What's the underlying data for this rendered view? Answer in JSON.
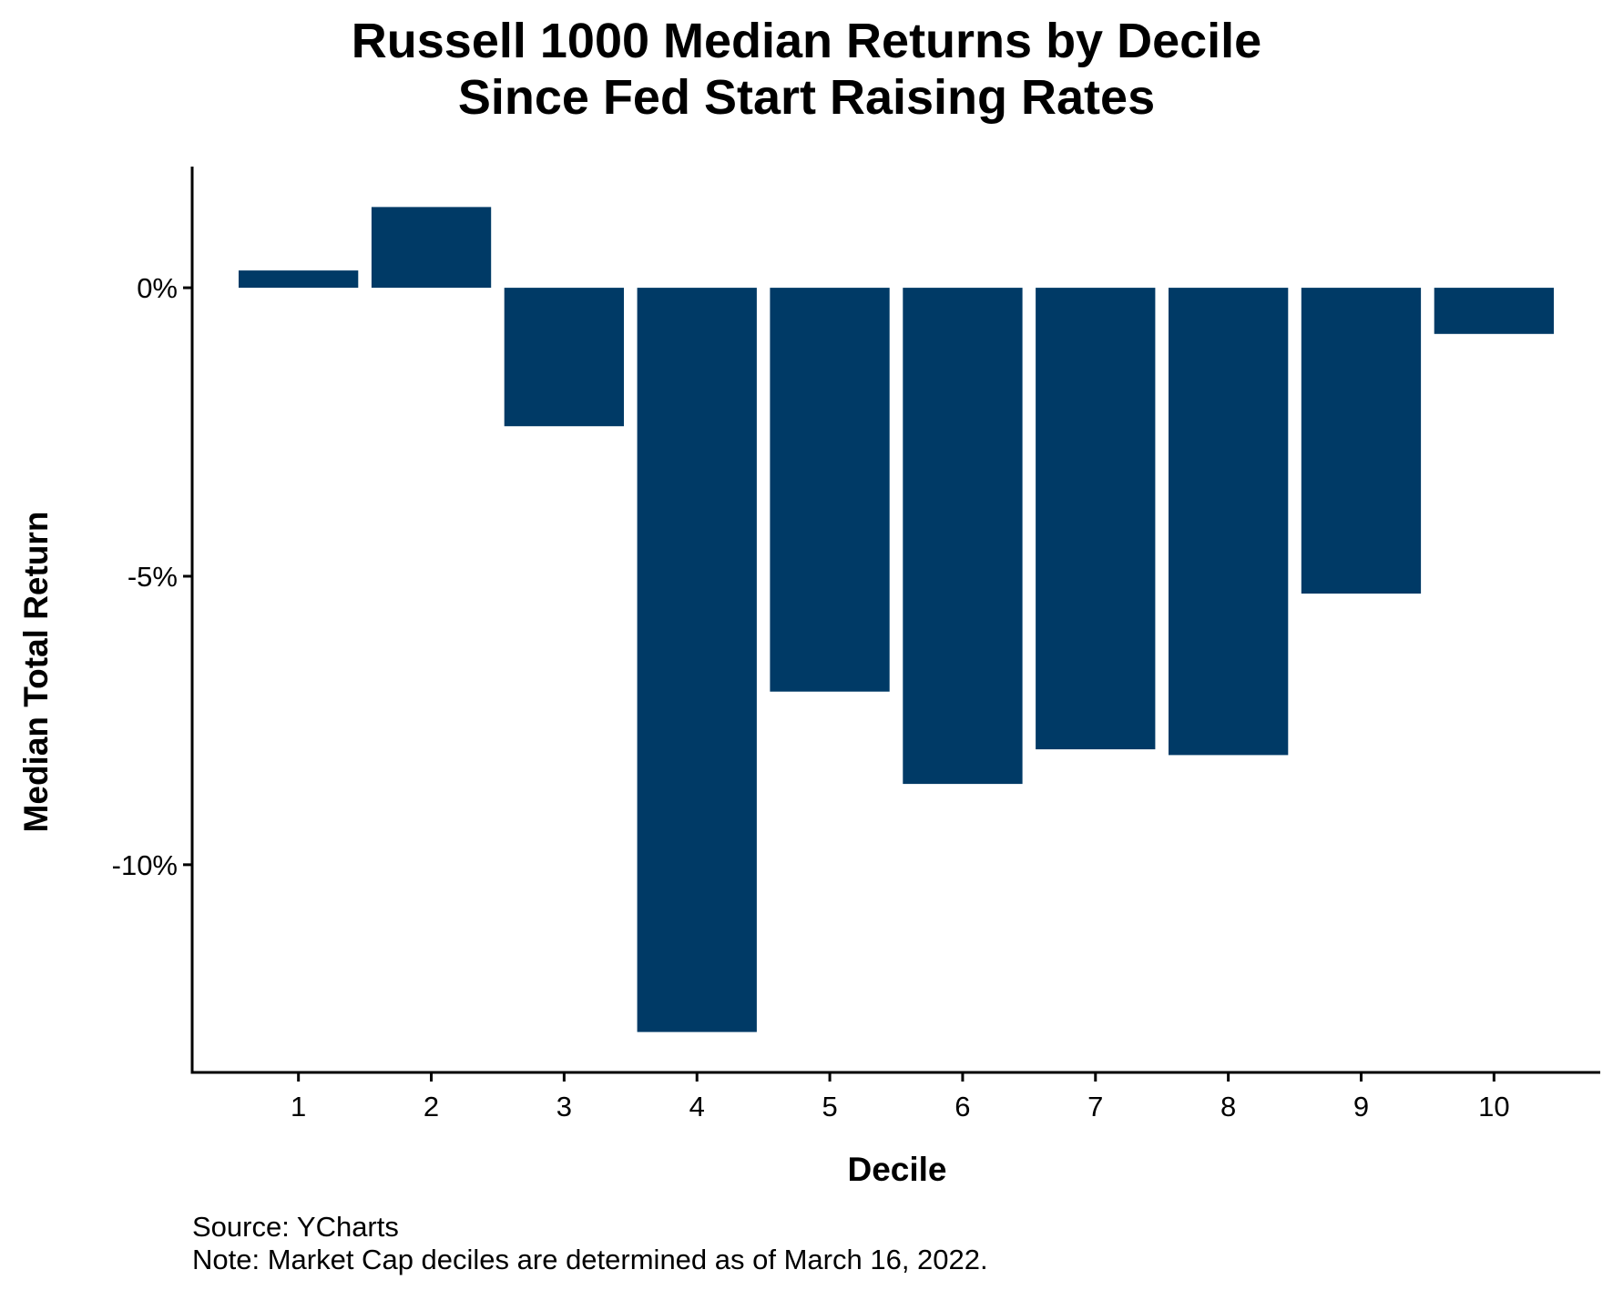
{
  "chart_data": {
    "type": "bar",
    "title": [
      "Russell 1000 Median Returns by Decile",
      "Since Fed Start Raising Rates"
    ],
    "xlabel": "Decile",
    "ylabel": "Median Total Return",
    "categories": [
      "1",
      "2",
      "3",
      "4",
      "5",
      "6",
      "7",
      "8",
      "9",
      "10"
    ],
    "values": [
      0.3,
      1.4,
      -2.4,
      -12.9,
      -7.0,
      -8.6,
      -8.0,
      -8.1,
      -5.3,
      -0.8
    ],
    "ylim": [
      -13.6,
      2.1
    ],
    "yticks": [
      0,
      -5,
      -10
    ],
    "ytick_labels": [
      "0%",
      "-5%",
      "-10%"
    ],
    "bar_color": "#003A66",
    "axis_color": "#000000",
    "grid": false,
    "legend": "none"
  },
  "footnotes": {
    "source": "Source: YCharts",
    "note": "Note: Market Cap deciles are determined as of March 16, 2022."
  }
}
